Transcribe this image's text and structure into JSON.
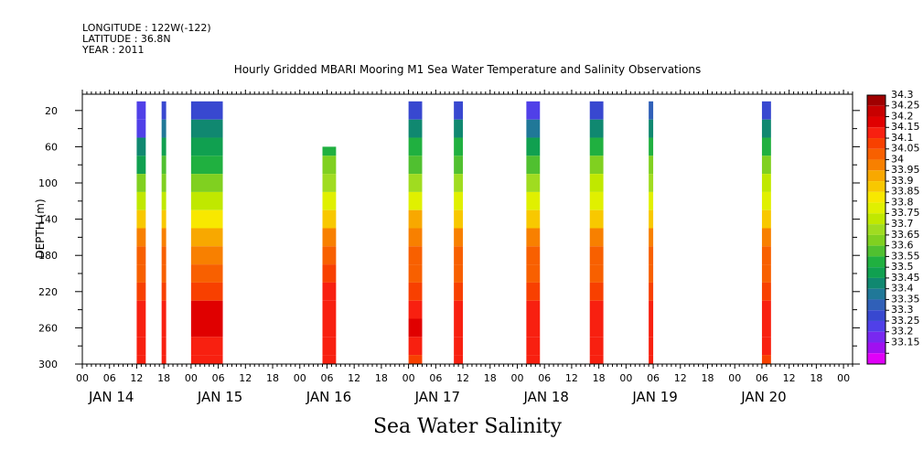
{
  "header": {
    "longitude": "LONGITUDE : 122W(-122)",
    "latitude": "LATITUDE : 36.8N",
    "year": "YEAR : 2011",
    "title": "Hourly Gridded MBARI Mooring M1 Sea Water Temperature and Salinity Observations"
  },
  "variable_title": "Sea Water Salinity",
  "chart_data": {
    "type": "heatmap",
    "title": "Hourly Gridded MBARI Mooring M1 Sea Water Temperature and Salinity Observations",
    "subtitle": "Sea Water Salinity",
    "xlabel": "",
    "ylabel": "DEPTH (m)",
    "x_unit": "hours since 2011-01-14 00:00",
    "xlim": [
      0,
      170
    ],
    "ylim": [
      300,
      2
    ],
    "y_axis_inverted": true,
    "y_ticks": [
      20,
      60,
      100,
      140,
      180,
      220,
      260,
      300
    ],
    "x_tick_labels": [
      "00",
      "06",
      "12",
      "18",
      "00",
      "06",
      "12",
      "18",
      "00",
      "06",
      "12",
      "18",
      "00",
      "06",
      "12",
      "18",
      "00",
      "06",
      "12",
      "18",
      "00",
      "06",
      "12",
      "18",
      "00",
      "06",
      "12",
      "18",
      "00"
    ],
    "date_labels": [
      "JAN 14",
      "JAN 15",
      "JAN 16",
      "JAN 17",
      "JAN 18",
      "JAN 19",
      "JAN 20"
    ],
    "colorbar": {
      "levels": [
        34.3,
        34.25,
        34.2,
        34.15,
        34.1,
        34.05,
        34,
        33.95,
        33.9,
        33.85,
        33.8,
        33.75,
        33.7,
        33.65,
        33.6,
        33.55,
        33.5,
        33.45,
        33.4,
        33.35,
        33.3,
        33.25,
        33.2,
        33.15
      ],
      "colors": [
        "#a00000",
        "#c80000",
        "#e00000",
        "#f82010",
        "#f84000",
        "#f86000",
        "#f88000",
        "#f8a800",
        "#f8c800",
        "#f8e800",
        "#e0f000",
        "#c0e800",
        "#a0dc20",
        "#80d020",
        "#50c030",
        "#20b040",
        "#10a050",
        "#108870",
        "#207898",
        "#3060b8",
        "#3848d0",
        "#5040e8",
        "#7828f0",
        "#a010f0",
        "#e000f8"
      ],
      "position": "right"
    },
    "profile_depths": [
      20,
      40,
      60,
      80,
      100,
      120,
      140,
      160,
      180,
      200,
      220,
      240,
      260,
      280,
      300
    ],
    "series": [
      {
        "x_range": [
          12,
          14
        ],
        "top_depth": 20,
        "values": [
          33.3,
          33.3,
          33.5,
          33.55,
          33.7,
          33.8,
          33.95,
          34.05,
          34.1,
          34.1,
          34.15,
          34.2,
          34.2,
          34.2,
          34.2
        ]
      },
      {
        "x_range": [
          17.5,
          18.5
        ],
        "top_depth": 20,
        "values": [
          33.35,
          33.45,
          33.55,
          33.65,
          33.7,
          33.8,
          33.95,
          34.05,
          34.1,
          34.1,
          34.15,
          34.2,
          34.2,
          34.2,
          34.2
        ]
      },
      {
        "x_range": [
          24,
          31
        ],
        "top_depth": 20,
        "values": [
          33.35,
          33.5,
          33.55,
          33.6,
          33.7,
          33.8,
          33.9,
          34.0,
          34.05,
          34.1,
          34.15,
          34.25,
          34.25,
          34.2,
          34.2
        ]
      },
      {
        "x_range": [
          53,
          56
        ],
        "top_depth": 60,
        "values": [
          null,
          null,
          33.6,
          33.7,
          33.75,
          33.85,
          33.95,
          34.05,
          34.1,
          34.15,
          34.2,
          34.2,
          34.2,
          34.2,
          34.2
        ]
      },
      {
        "x_range": [
          72,
          75
        ],
        "top_depth": 20,
        "values": [
          33.35,
          33.5,
          33.6,
          33.65,
          33.75,
          33.85,
          34.0,
          34.05,
          34.1,
          34.1,
          34.15,
          34.2,
          34.25,
          34.2,
          34.15
        ]
      },
      {
        "x_range": [
          82,
          84
        ],
        "top_depth": 20,
        "values": [
          33.35,
          33.5,
          33.6,
          33.65,
          33.75,
          33.85,
          33.95,
          34.05,
          34.1,
          34.1,
          34.15,
          34.2,
          34.2,
          34.2,
          34.2
        ]
      },
      {
        "x_range": [
          98,
          101
        ],
        "top_depth": 20,
        "values": [
          33.3,
          33.45,
          33.55,
          33.65,
          33.75,
          33.85,
          33.95,
          34.05,
          34.1,
          34.1,
          34.15,
          34.2,
          34.2,
          34.2,
          34.2
        ]
      },
      {
        "x_range": [
          112,
          115
        ],
        "top_depth": 20,
        "values": [
          33.35,
          33.5,
          33.6,
          33.7,
          33.8,
          33.85,
          33.95,
          34.05,
          34.1,
          34.1,
          34.15,
          34.2,
          34.2,
          34.2,
          34.2
        ]
      },
      {
        "x_range": [
          125,
          126
        ],
        "top_depth": 20,
        "values": [
          33.4,
          33.5,
          33.6,
          33.7,
          33.75,
          33.85,
          33.95,
          34.05,
          34.1,
          34.1,
          34.15,
          34.2,
          34.2,
          34.2,
          34.2
        ]
      },
      {
        "x_range": [
          150,
          152
        ],
        "top_depth": 20,
        "values": [
          33.35,
          33.5,
          33.6,
          33.7,
          33.8,
          33.85,
          33.95,
          34.05,
          34.1,
          34.1,
          34.15,
          34.2,
          34.2,
          34.2,
          34.15
        ]
      }
    ]
  }
}
